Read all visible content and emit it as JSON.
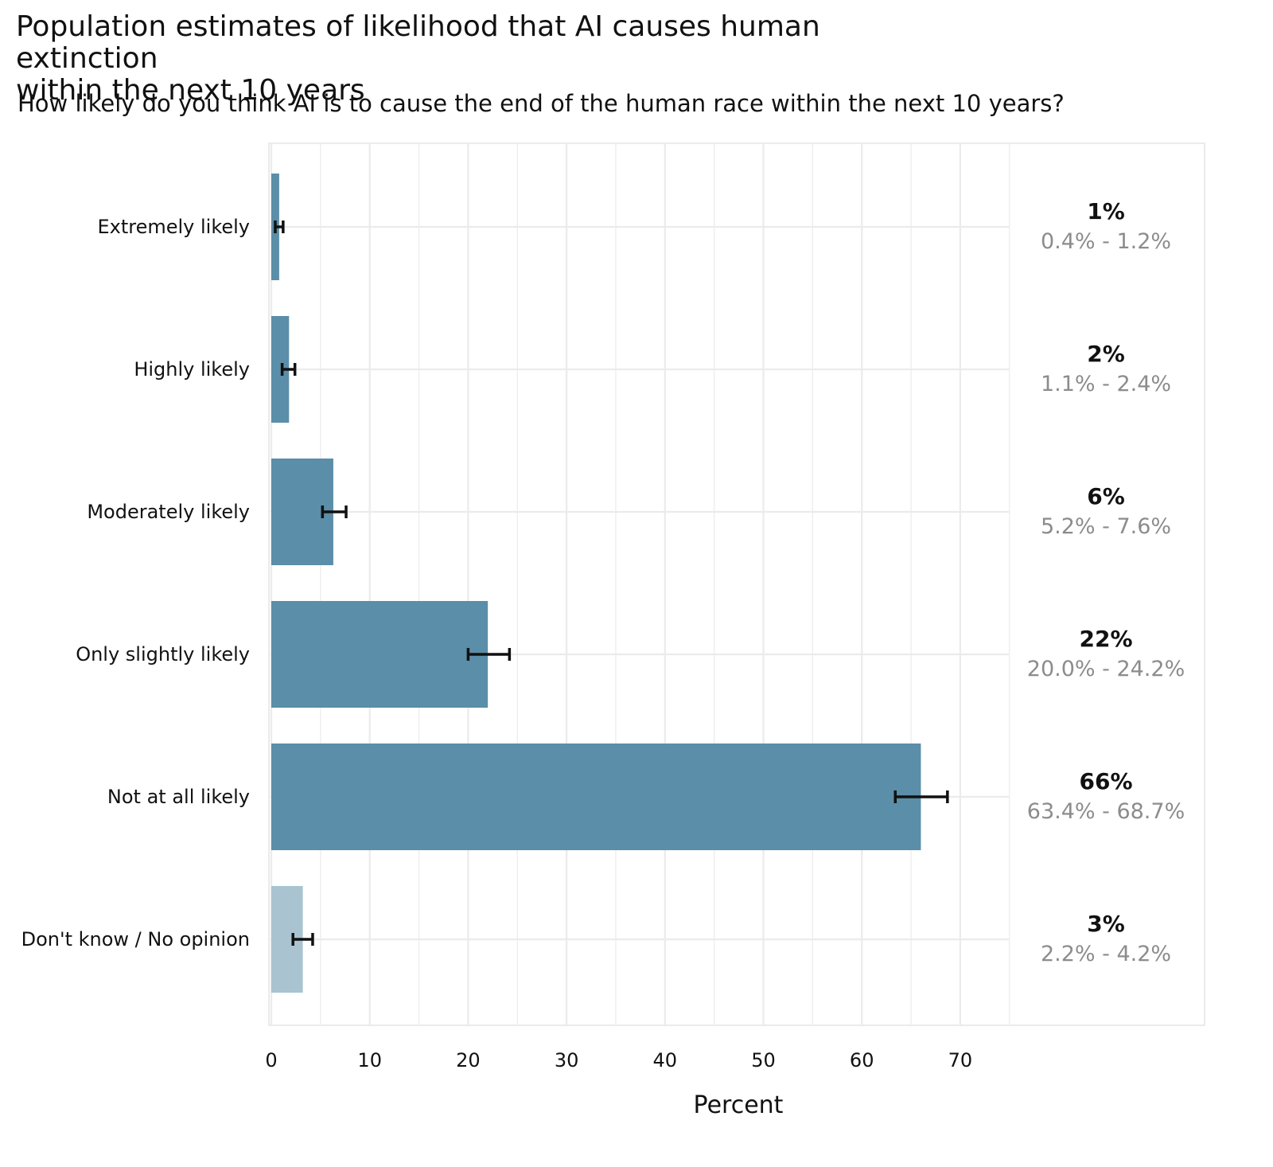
{
  "chart_data": {
    "type": "bar",
    "orientation": "horizontal",
    "title": "Population estimates of likelihood that AI causes human extinction within the next 10 years",
    "title_lines": [
      "Population estimates of likelihood that AI causes human extinction",
      "within the next 10 years"
    ],
    "subtitle": "How likely do you think AI is to cause the end of the human race within the next 10 years?",
    "xlabel": "Percent",
    "ylabel": "",
    "xlim": [
      0,
      75
    ],
    "xticks": [
      0,
      10,
      20,
      30,
      40,
      50,
      60,
      70
    ],
    "grid": true,
    "categories": [
      "Extremely likely",
      "Highly likely",
      "Moderately likely",
      "Only slightly likely",
      "Not at all likely",
      "Don't know / No opinion"
    ],
    "values": [
      0.8,
      1.8,
      6.3,
      22.0,
      66.0,
      3.2
    ],
    "ci_low": [
      0.4,
      1.1,
      5.2,
      20.0,
      63.4,
      2.2
    ],
    "ci_high": [
      1.2,
      2.4,
      7.6,
      24.2,
      68.7,
      4.2
    ],
    "value_labels": [
      "1%",
      "2%",
      "6%",
      "22%",
      "66%",
      "3%"
    ],
    "ci_labels": [
      "0.4% - 1.2%",
      "1.1% - 2.4%",
      "5.2% - 7.6%",
      "20.0% - 24.2%",
      "63.4% - 68.7%",
      "2.2% - 4.2%"
    ],
    "colors": {
      "bar": "#5b8ea8",
      "bar_dont_know": "#a9c3d0",
      "error_bar": "#111111",
      "grid": "#ebebeb",
      "ci_text": "#8c8c8c"
    }
  }
}
